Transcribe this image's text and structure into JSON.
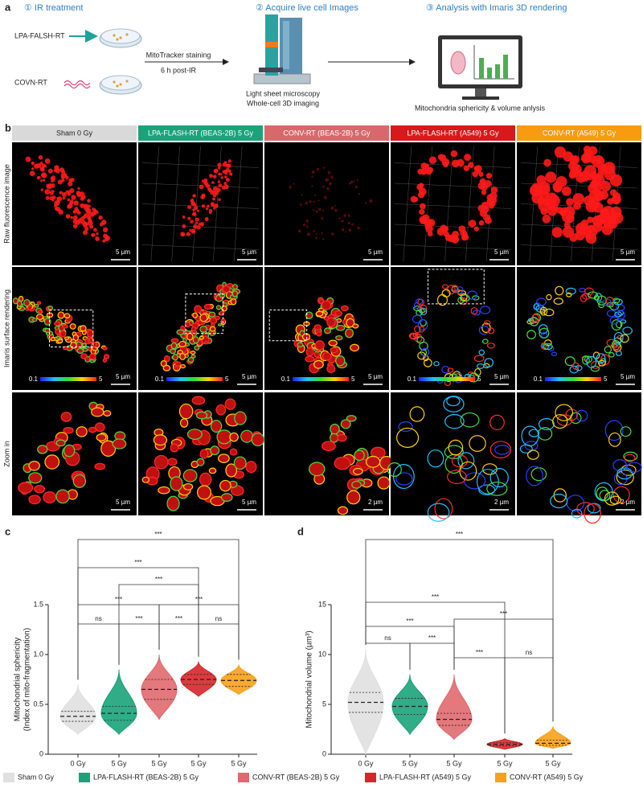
{
  "panel_labels": [
    "a",
    "b",
    "c",
    "d"
  ],
  "panel_a": {
    "steps": [
      "① IR treatment",
      "② Acquire live cell Images",
      "③ Analysis with Imaris 3D rendering"
    ],
    "groups": [
      "LPA-FALSH-RT",
      "COVN-RT"
    ],
    "staining": "MitoTracker staining",
    "timepoint": "6 h post-IR",
    "microscopy": [
      "Light sheet microscopy",
      "Whole-cell 3D imaging"
    ],
    "analysis": "Mitochondria sphericity & volume anlysis"
  },
  "panel_b": {
    "columns": [
      {
        "label": "Sham 0 Gy",
        "color": "#d9d9d9"
      },
      {
        "label": "LPA-FLASH-RT (BEAS-2B) 5 Gy",
        "color": "#1aa37a"
      },
      {
        "label": "CONV-RT (BEAS-2B) 5 Gy",
        "color": "#d9686b"
      },
      {
        "label": "LPA-FLASH-RT (A549) 5 Gy",
        "color": "#d7191c"
      },
      {
        "label": "CONV-RT (A549) 5 Gy",
        "color": "#f99b10"
      }
    ],
    "rows": [
      "Raw fluorescence image",
      "Imaris surface rendering",
      "Zoom in"
    ],
    "scale_bars": [
      [
        "5 µm",
        "5 µm",
        "5 µm",
        "5 µm",
        "5 µm"
      ],
      [
        "5 µm",
        "5 µm",
        "5 µm",
        "5 µm",
        "5 µm"
      ],
      [
        "5 µm",
        "5 µm",
        "2 µm",
        "2 µm",
        "2 µm"
      ]
    ],
    "colorbar_ticks": [
      0.1,
      5
    ]
  },
  "chart_data": [
    {
      "type": "violin",
      "ylabel": [
        "Mitochondrial sphericity",
        "(Index of mito-fragmentation)"
      ],
      "categories": [
        "0 Gy",
        "5 Gy",
        "5 Gy",
        "5 Gy",
        "5 Gy"
      ],
      "ylim": [
        0,
        1.5
      ],
      "yticks": [
        0,
        0.5,
        {
          "value": 1,
          "label": "1.0"
        },
        1.5
      ],
      "series": [
        {
          "name": "Sham 0 Gy",
          "color": "#e0e0e0",
          "min": 0.2,
          "q1": 0.33,
          "median": 0.38,
          "q3": 0.43,
          "max": 0.7
        },
        {
          "name": "LPA-FLASH-RT (BEAS-2B) 5 Gy",
          "color": "#1aa37a",
          "min": 0.2,
          "q1": 0.34,
          "median": 0.41,
          "q3": 0.48,
          "max": 0.85
        },
        {
          "name": "CONV-RT (BEAS-2B) 5 Gy",
          "color": "#e0696f",
          "min": 0.35,
          "q1": 0.55,
          "median": 0.65,
          "q3": 0.75,
          "max": 1.0
        },
        {
          "name": "LPA-FLASH-RT (A549) 5 Gy",
          "color": "#d7262b",
          "min": 0.58,
          "q1": 0.7,
          "median": 0.75,
          "q3": 0.8,
          "max": 0.93
        },
        {
          "name": "CONV-RT (A549) 5 Gy",
          "color": "#f9a01b",
          "min": 0.6,
          "q1": 0.68,
          "median": 0.74,
          "q3": 0.8,
          "max": 0.9
        }
      ],
      "annotations": [
        "***",
        "***",
        "***",
        "***",
        "***",
        "ns",
        "***",
        "***",
        "ns"
      ]
    },
    {
      "type": "violin",
      "ylabel": [
        "Mitochondrial volume (µm³)"
      ],
      "categories": [
        "0 Gy",
        "5 Gy",
        "5 Gy",
        "5 Gy",
        "5 Gy"
      ],
      "ylim": [
        0,
        15
      ],
      "yticks": [
        0,
        5,
        10,
        15
      ],
      "series": [
        {
          "name": "Sham 0 Gy",
          "color": "#e0e0e0",
          "min": 0,
          "q1": 4.2,
          "median": 5.2,
          "q3": 6.2,
          "max": 10.5
        },
        {
          "name": "LPA-FLASH-RT (BEAS-2B) 5 Gy",
          "color": "#1aa37a",
          "min": 2,
          "q1": 4.0,
          "median": 4.8,
          "q3": 5.6,
          "max": 8
        },
        {
          "name": "CONV-RT (BEAS-2B) 5 Gy",
          "color": "#e0696f",
          "min": 1.5,
          "q1": 2.9,
          "median": 3.5,
          "q3": 4.1,
          "max": 8
        },
        {
          "name": "LPA-FLASH-RT (A549) 5 Gy",
          "color": "#d7262b",
          "min": 0.5,
          "q1": 0.85,
          "median": 1.0,
          "q3": 1.15,
          "max": 1.6
        },
        {
          "name": "CONV-RT (A549) 5 Gy",
          "color": "#f9a01b",
          "min": 0.6,
          "q1": 0.9,
          "median": 1.1,
          "q3": 1.4,
          "max": 2.8
        }
      ],
      "annotations": [
        "***",
        "***",
        "***",
        "***",
        "ns",
        "***",
        "***",
        "ns"
      ]
    }
  ]
}
